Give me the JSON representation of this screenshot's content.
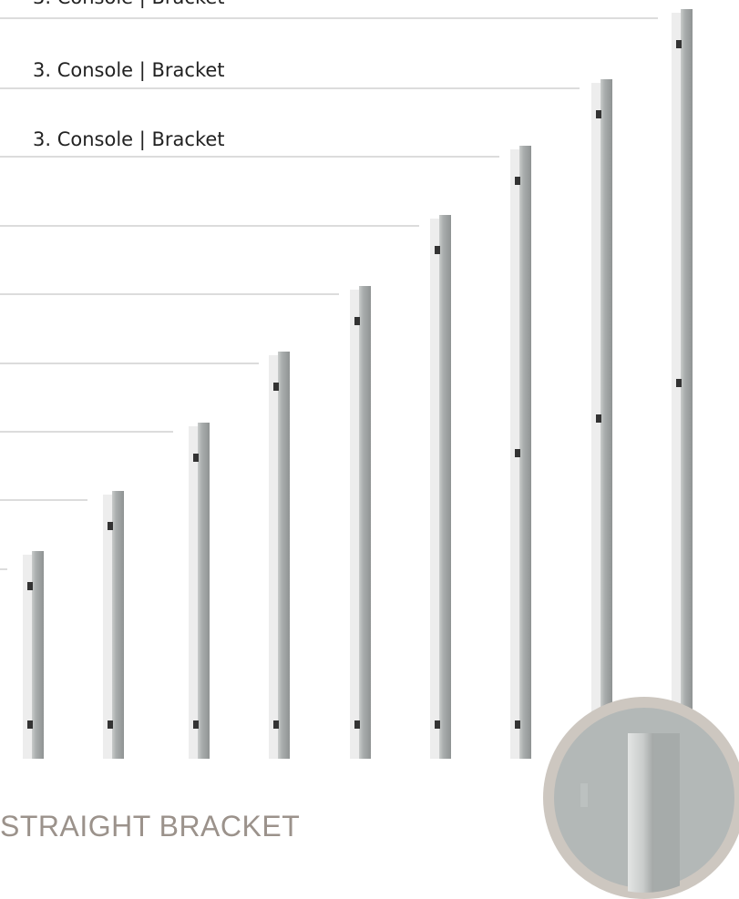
{
  "labels": [
    "3. Console | Bracket",
    "3. Console | Bracket",
    "3. Console | Bracket"
  ],
  "caption": "STRAIGHT BRACKET"
}
